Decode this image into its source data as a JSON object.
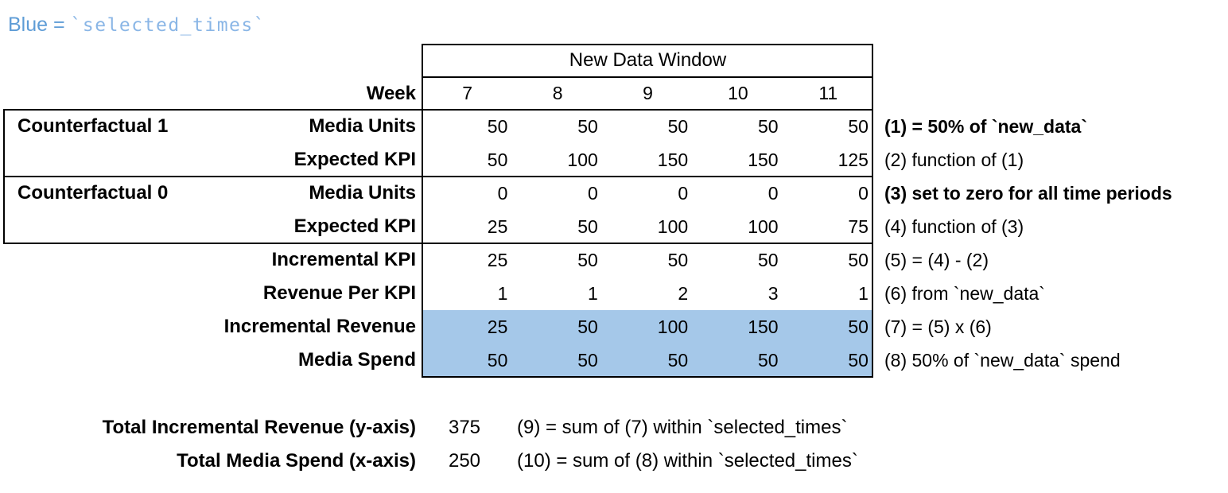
{
  "legend": {
    "label": "Blue =",
    "code": "`selected_times`"
  },
  "table": {
    "window_header": "New Data Window",
    "week_label": "Week",
    "weeks": [
      "7",
      "8",
      "9",
      "10",
      "11"
    ],
    "rows": [
      {
        "group": "Counterfactual 1",
        "label": "Media Units",
        "values": [
          "50",
          "50",
          "50",
          "50",
          "50"
        ],
        "note": "(1) = 50% of `new_data`",
        "note_bold": true,
        "highlight": false
      },
      {
        "label": "Expected KPI",
        "values": [
          "50",
          "100",
          "150",
          "150",
          "125"
        ],
        "note": "(2) function of (1)",
        "note_bold": false,
        "highlight": false
      },
      {
        "group": "Counterfactual 0",
        "label": "Media Units",
        "values": [
          "0",
          "0",
          "0",
          "0",
          "0"
        ],
        "note": "(3) set to zero for all time periods",
        "note_bold": true,
        "highlight": false
      },
      {
        "label": "Expected KPI",
        "values": [
          "25",
          "50",
          "100",
          "100",
          "75"
        ],
        "note": "(4) function of (3)",
        "note_bold": false,
        "highlight": false
      },
      {
        "label": "Incremental KPI",
        "values": [
          "25",
          "50",
          "50",
          "50",
          "50"
        ],
        "note": "(5) = (4) - (2)",
        "note_bold": false,
        "highlight": false
      },
      {
        "label": "Revenue Per KPI",
        "values": [
          "1",
          "1",
          "2",
          "3",
          "1"
        ],
        "note": "(6) from `new_data`",
        "note_bold": false,
        "highlight": false
      },
      {
        "label": "Incremental Revenue",
        "values": [
          "25",
          "50",
          "100",
          "150",
          "50"
        ],
        "note": "(7) = (5) x (6)",
        "note_bold": false,
        "highlight": true
      },
      {
        "label": "Media Spend",
        "values": [
          "50",
          "50",
          "50",
          "50",
          "50"
        ],
        "note": "(8) 50% of `new_data` spend",
        "note_bold": false,
        "highlight": true
      }
    ]
  },
  "totals": [
    {
      "label": "Total Incremental Revenue (y-axis)",
      "value": "375",
      "note": "(9) = sum of (7) within `selected_times`"
    },
    {
      "label": "Total Media Spend (x-axis)",
      "value": "250",
      "note": "(10) = sum of (8) within `selected_times`"
    }
  ],
  "colors": {
    "highlight": "#A5C8E9",
    "legend_label": "#5E9CD6",
    "legend_code": "#8AB6E6",
    "border": "#000000"
  }
}
